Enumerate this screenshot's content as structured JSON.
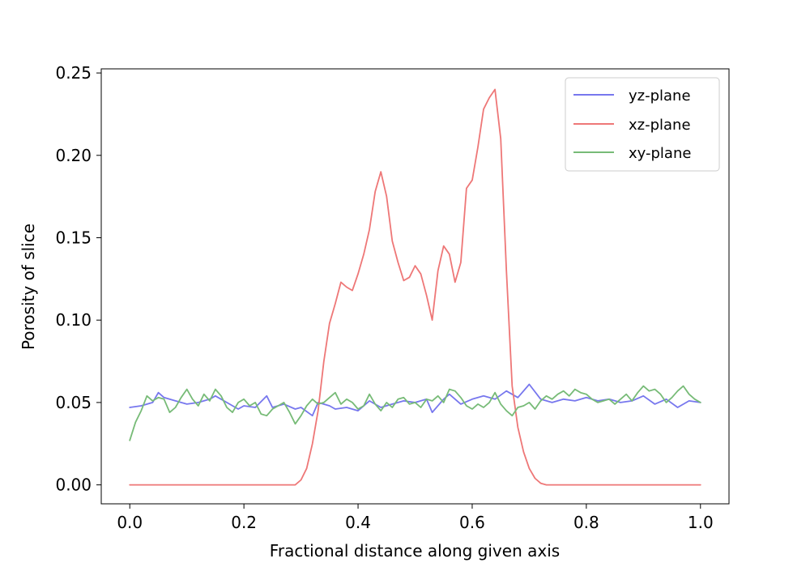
{
  "chart_data": {
    "type": "line",
    "xlabel": "Fractional distance along given axis",
    "ylabel": "Porosity of slice",
    "xlim": [
      -0.05,
      1.05
    ],
    "ylim": [
      -0.0115,
      0.2525
    ],
    "xticks": [
      0.0,
      0.2,
      0.4,
      0.6,
      0.8,
      1.0
    ],
    "xtick_labels": [
      "0.0",
      "0.2",
      "0.4",
      "0.6",
      "0.8",
      "1.0"
    ],
    "yticks": [
      0.0,
      0.05,
      0.1,
      0.15,
      0.2,
      0.25
    ],
    "ytick_labels": [
      "0.00",
      "0.05",
      "0.10",
      "0.15",
      "0.20",
      "0.25"
    ],
    "grid": false,
    "legend_position": "top-right",
    "series": [
      {
        "name": "yz-plane",
        "color": "#7777ee",
        "x": [
          0.0,
          0.02,
          0.04,
          0.05,
          0.06,
          0.08,
          0.1,
          0.12,
          0.14,
          0.15,
          0.17,
          0.19,
          0.2,
          0.22,
          0.24,
          0.25,
          0.27,
          0.29,
          0.3,
          0.32,
          0.33,
          0.35,
          0.36,
          0.38,
          0.4,
          0.42,
          0.44,
          0.46,
          0.48,
          0.5,
          0.52,
          0.53,
          0.55,
          0.56,
          0.58,
          0.6,
          0.62,
          0.64,
          0.66,
          0.68,
          0.7,
          0.72,
          0.74,
          0.76,
          0.78,
          0.8,
          0.82,
          0.84,
          0.86,
          0.88,
          0.9,
          0.92,
          0.94,
          0.96,
          0.98,
          1.0
        ],
        "y": [
          0.047,
          0.048,
          0.05,
          0.056,
          0.053,
          0.051,
          0.049,
          0.05,
          0.052,
          0.054,
          0.05,
          0.046,
          0.048,
          0.047,
          0.054,
          0.047,
          0.049,
          0.046,
          0.047,
          0.042,
          0.05,
          0.048,
          0.046,
          0.047,
          0.045,
          0.051,
          0.047,
          0.049,
          0.051,
          0.05,
          0.052,
          0.044,
          0.052,
          0.055,
          0.049,
          0.052,
          0.054,
          0.052,
          0.057,
          0.053,
          0.061,
          0.052,
          0.05,
          0.052,
          0.051,
          0.053,
          0.051,
          0.052,
          0.05,
          0.051,
          0.054,
          0.049,
          0.052,
          0.047,
          0.051,
          0.05
        ]
      },
      {
        "name": "xz-plane",
        "color": "#ee7777",
        "x": [
          0.0,
          0.1,
          0.2,
          0.29,
          0.3,
          0.31,
          0.32,
          0.33,
          0.34,
          0.35,
          0.36,
          0.37,
          0.38,
          0.39,
          0.4,
          0.41,
          0.42,
          0.43,
          0.44,
          0.45,
          0.46,
          0.47,
          0.48,
          0.49,
          0.5,
          0.51,
          0.52,
          0.53,
          0.54,
          0.55,
          0.56,
          0.57,
          0.58,
          0.59,
          0.6,
          0.61,
          0.62,
          0.63,
          0.64,
          0.65,
          0.66,
          0.67,
          0.68,
          0.69,
          0.7,
          0.71,
          0.72,
          0.73,
          0.75,
          0.8,
          0.9,
          1.0
        ],
        "y": [
          0.0,
          0.0,
          0.0,
          0.0,
          0.003,
          0.01,
          0.025,
          0.045,
          0.075,
          0.098,
          0.11,
          0.123,
          0.12,
          0.118,
          0.128,
          0.14,
          0.155,
          0.178,
          0.19,
          0.175,
          0.148,
          0.135,
          0.124,
          0.126,
          0.133,
          0.128,
          0.115,
          0.1,
          0.13,
          0.145,
          0.14,
          0.123,
          0.135,
          0.18,
          0.185,
          0.205,
          0.228,
          0.235,
          0.24,
          0.21,
          0.13,
          0.06,
          0.035,
          0.02,
          0.01,
          0.004,
          0.001,
          0.0,
          0.0,
          0.0,
          0.0,
          0.0
        ]
      },
      {
        "name": "xy-plane",
        "color": "#77bb77",
        "x": [
          0.0,
          0.01,
          0.02,
          0.03,
          0.04,
          0.05,
          0.06,
          0.07,
          0.08,
          0.09,
          0.1,
          0.11,
          0.12,
          0.13,
          0.14,
          0.15,
          0.16,
          0.17,
          0.18,
          0.19,
          0.2,
          0.21,
          0.22,
          0.23,
          0.24,
          0.25,
          0.26,
          0.27,
          0.28,
          0.29,
          0.3,
          0.31,
          0.32,
          0.33,
          0.34,
          0.35,
          0.36,
          0.37,
          0.38,
          0.39,
          0.4,
          0.41,
          0.42,
          0.43,
          0.44,
          0.45,
          0.46,
          0.47,
          0.48,
          0.49,
          0.5,
          0.51,
          0.52,
          0.53,
          0.54,
          0.55,
          0.56,
          0.57,
          0.58,
          0.59,
          0.6,
          0.61,
          0.62,
          0.63,
          0.64,
          0.65,
          0.66,
          0.67,
          0.68,
          0.69,
          0.7,
          0.71,
          0.72,
          0.73,
          0.74,
          0.75,
          0.76,
          0.77,
          0.78,
          0.79,
          0.8,
          0.81,
          0.82,
          0.83,
          0.84,
          0.85,
          0.86,
          0.87,
          0.88,
          0.89,
          0.9,
          0.91,
          0.92,
          0.93,
          0.94,
          0.95,
          0.96,
          0.97,
          0.98,
          0.99,
          1.0
        ],
        "y": [
          0.027,
          0.038,
          0.045,
          0.054,
          0.051,
          0.053,
          0.052,
          0.044,
          0.047,
          0.053,
          0.058,
          0.052,
          0.048,
          0.055,
          0.051,
          0.058,
          0.054,
          0.047,
          0.044,
          0.05,
          0.052,
          0.048,
          0.05,
          0.043,
          0.042,
          0.046,
          0.048,
          0.05,
          0.044,
          0.037,
          0.042,
          0.048,
          0.052,
          0.049,
          0.05,
          0.053,
          0.056,
          0.049,
          0.052,
          0.05,
          0.046,
          0.048,
          0.055,
          0.049,
          0.045,
          0.05,
          0.047,
          0.052,
          0.053,
          0.049,
          0.05,
          0.047,
          0.052,
          0.051,
          0.054,
          0.05,
          0.058,
          0.057,
          0.053,
          0.048,
          0.046,
          0.049,
          0.047,
          0.05,
          0.056,
          0.049,
          0.045,
          0.042,
          0.047,
          0.048,
          0.05,
          0.046,
          0.051,
          0.054,
          0.052,
          0.055,
          0.057,
          0.054,
          0.058,
          0.056,
          0.055,
          0.052,
          0.05,
          0.051,
          0.052,
          0.049,
          0.052,
          0.055,
          0.051,
          0.056,
          0.06,
          0.057,
          0.058,
          0.055,
          0.05,
          0.053,
          0.057,
          0.06,
          0.055,
          0.052,
          0.05
        ]
      }
    ]
  }
}
